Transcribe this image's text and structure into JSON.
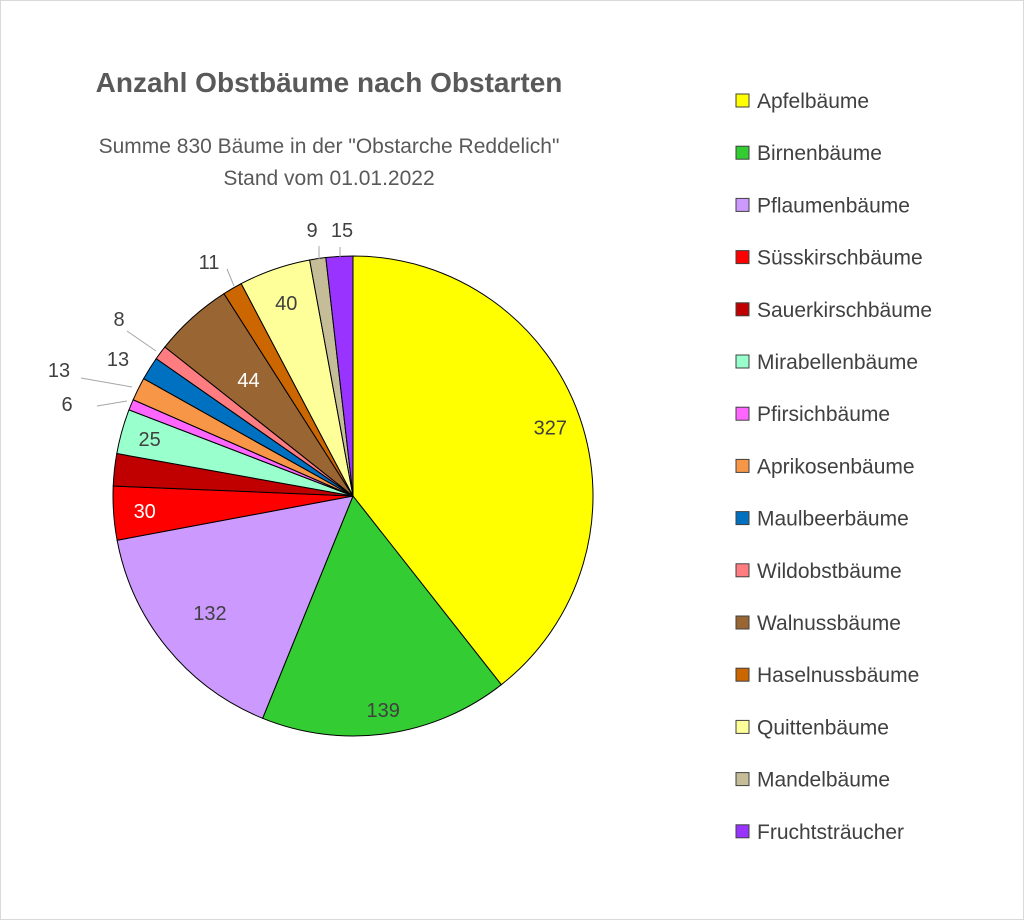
{
  "chart_data": {
    "type": "pie",
    "title": "Anzahl Obstbäume nach Obstarten",
    "subtitle_lines": [
      "Summe 830 Bäume in der \"Obstarche Reddelich\"",
      "Stand vom 01.01.2022"
    ],
    "legend_position": "right",
    "start_angle_deg": 0,
    "direction": "clockwise",
    "slices": [
      {
        "label": "Apfelbäume",
        "value": 327,
        "color": "#FFFF00",
        "value_label": "327",
        "label_color": "#404040"
      },
      {
        "label": "Birnenbäume",
        "value": 139,
        "color": "#33CC33",
        "value_label": "139",
        "label_color": "#404040"
      },
      {
        "label": "Pflaumenbäume",
        "value": 132,
        "color": "#CC99FF",
        "value_label": "132",
        "label_color": "#404040"
      },
      {
        "label": "Süsskirschbäume",
        "value": 30,
        "color": "#FF0000",
        "value_label": "30",
        "label_color": "#FFFFFF"
      },
      {
        "label": "Sauerkirschbäume",
        "value": 18,
        "color": "#C00000",
        "value_label": "",
        "label_color": "#404040"
      },
      {
        "label": "Mirabellenbäume",
        "value": 25,
        "color": "#99FFCC",
        "value_label": "25",
        "label_color": "#404040"
      },
      {
        "label": "Pfirsichbäume",
        "value": 6,
        "color": "#FF66FF",
        "value_label": "6",
        "label_color": "#404040"
      },
      {
        "label": "Aprikosenbäume",
        "value": 13,
        "color": "#F79646",
        "value_label": "13",
        "label_color": "#404040"
      },
      {
        "label": "Maulbeerbäume",
        "value": 13,
        "color": "#0070C0",
        "value_label": "13",
        "label_color": "#404040"
      },
      {
        "label": "Wildobstbäume",
        "value": 8,
        "color": "#FF7C80",
        "value_label": "8",
        "label_color": "#404040"
      },
      {
        "label": "Walnussbäume",
        "value": 44,
        "color": "#996633",
        "value_label": "44",
        "label_color": "#FFFFFF"
      },
      {
        "label": "Haselnussbäume",
        "value": 11,
        "color": "#CC6600",
        "value_label": "11",
        "label_color": "#404040"
      },
      {
        "label": "Quittenbäume",
        "value": 40,
        "color": "#FFFF99",
        "value_label": "40",
        "label_color": "#404040"
      },
      {
        "label": "Mandelbäume",
        "value": 9,
        "color": "#C4BD97",
        "value_label": "9",
        "label_color": "#404040"
      },
      {
        "label": "Fruchtsträucher",
        "value": 15,
        "color": "#9933FF",
        "value_label": "15",
        "label_color": "#404040"
      }
    ]
  }
}
